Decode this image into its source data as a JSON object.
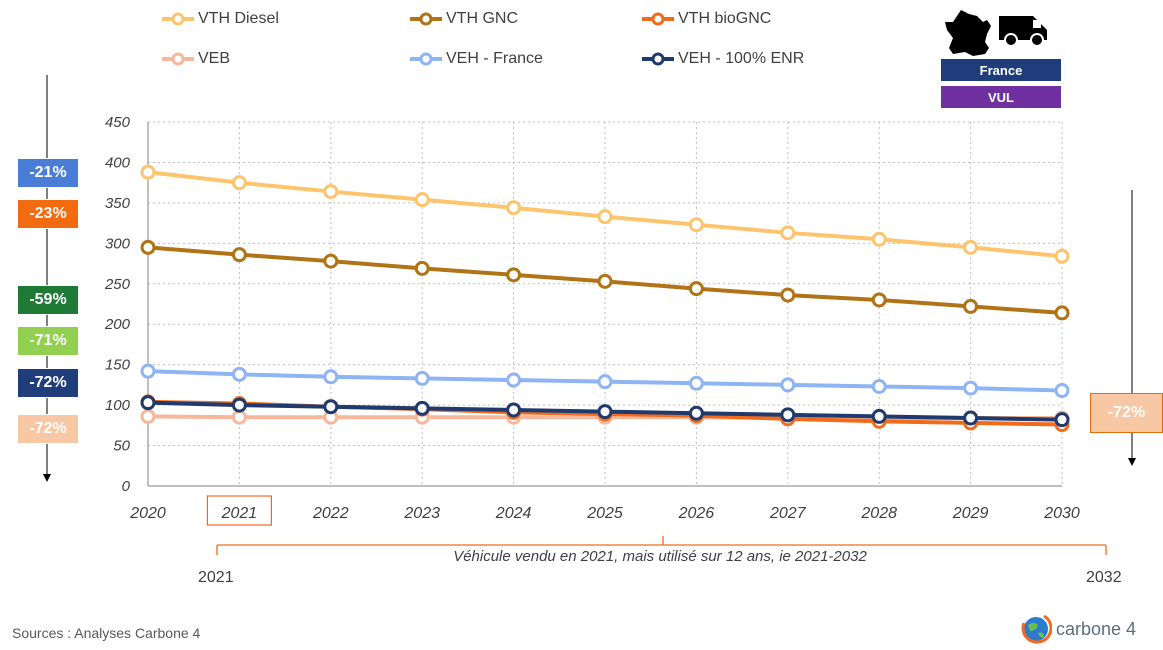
{
  "chart_data": {
    "type": "line",
    "x": [
      2020,
      2021,
      2022,
      2023,
      2024,
      2025,
      2026,
      2027,
      2028,
      2029,
      2030
    ],
    "ylim": [
      0,
      450
    ],
    "yticks": [
      0,
      50,
      100,
      150,
      200,
      250,
      300,
      350,
      400,
      450
    ],
    "grid": true,
    "legend_position": "top",
    "highlighted_year": 2021,
    "series": [
      {
        "name": "VTH Diesel",
        "color": "#fdc46e",
        "values": [
          388,
          375,
          364,
          354,
          344,
          333,
          323,
          313,
          305,
          295,
          284
        ]
      },
      {
        "name": "VTH GNC",
        "color": "#b07315",
        "values": [
          295,
          286,
          278,
          269,
          261,
          253,
          244,
          236,
          230,
          222,
          214
        ]
      },
      {
        "name": "VTH bioGNC",
        "color": "#f26b1d",
        "values": [
          104,
          102,
          98,
          95,
          91,
          89,
          87,
          83,
          80,
          78,
          76
        ]
      },
      {
        "name": "VEB",
        "color": "#f7b79b",
        "values": [
          86,
          85,
          85,
          85,
          85,
          85,
          85,
          84,
          84,
          84,
          84
        ]
      },
      {
        "name": "VEH - France",
        "color": "#8eb4f4",
        "values": [
          142,
          138,
          135,
          133,
          131,
          129,
          127,
          125,
          123,
          121,
          118
        ]
      },
      {
        "name": "VEH - 100% ENR",
        "color": "#1f3a6e",
        "values": [
          103,
          100,
          98,
          96,
          94,
          92,
          90,
          88,
          86,
          84,
          82
        ]
      }
    ]
  },
  "left_badges": [
    {
      "label": "-21%",
      "color": "#4a7ed6"
    },
    {
      "label": "-23%",
      "color": "#f26b0f"
    },
    {
      "label": "-59%",
      "color": "#1f7a36"
    },
    {
      "label": "-71%",
      "color": "#92d050"
    },
    {
      "label": "-72%",
      "color": "#1f3d7a"
    },
    {
      "label": "-72%",
      "color": "#f8c7a3"
    }
  ],
  "right_box": {
    "label": "-72%"
  },
  "tags": {
    "country": "France",
    "vehicle": "VUL"
  },
  "span": {
    "caption": "Véhicule vendu en 2021, mais utilisé sur 12 ans, ie 2021-2032",
    "start": "2021",
    "end": "2032"
  },
  "footer": {
    "sources": "Sources : Analyses Carbone 4",
    "brand": "carbone 4"
  },
  "icons": [
    "france-map-icon",
    "van-icon",
    "carbone4-globe-icon"
  ]
}
